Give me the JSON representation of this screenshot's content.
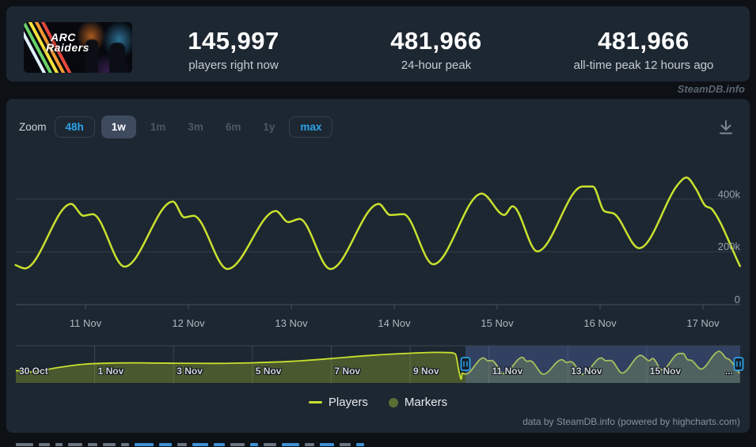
{
  "header": {
    "game": {
      "title_line1": "ARC",
      "title_line2": "Raiders"
    },
    "stats": [
      {
        "value": "145,997",
        "label": "players right now"
      },
      {
        "value": "481,966",
        "label": "24-hour peak"
      },
      {
        "value": "481,966",
        "label": "all-time peak 12 hours ago"
      }
    ]
  },
  "watermark": "SteamDB.info",
  "toolbar": {
    "zoom_label": "Zoom",
    "buttons": [
      {
        "label": "48h",
        "state": "enabled"
      },
      {
        "label": "1w",
        "state": "active"
      },
      {
        "label": "1m",
        "state": "disabled"
      },
      {
        "label": "3m",
        "state": "disabled"
      },
      {
        "label": "6m",
        "state": "disabled"
      },
      {
        "label": "1y",
        "state": "disabled"
      },
      {
        "label": "max",
        "state": "enabled"
      }
    ]
  },
  "chart_data": {
    "type": "line",
    "series_name": "Players",
    "x_axis": {
      "unit": "days relative to 11 Nov 00:00",
      "tick_labels": [
        "11 Nov",
        "12 Nov",
        "13 Nov",
        "14 Nov",
        "15 Nov",
        "16 Nov",
        "17 Nov"
      ]
    },
    "y_axis": {
      "tick_labels": [
        "400k",
        "200k",
        "0"
      ],
      "tick_values": [
        400000,
        200000,
        0
      ],
      "max": 570000
    },
    "points": [
      [
        -0.68,
        150000
      ],
      [
        -0.59,
        137000
      ],
      [
        -0.14,
        382000
      ],
      [
        -0.02,
        337000
      ],
      [
        0.07,
        343000
      ],
      [
        0.38,
        144000
      ],
      [
        0.85,
        391000
      ],
      [
        0.96,
        331000
      ],
      [
        1.05,
        337000
      ],
      [
        1.38,
        135000
      ],
      [
        1.85,
        355000
      ],
      [
        1.97,
        313000
      ],
      [
        2.08,
        325000
      ],
      [
        2.38,
        135000
      ],
      [
        2.85,
        382000
      ],
      [
        2.96,
        340000
      ],
      [
        3.09,
        343000
      ],
      [
        3.38,
        153000
      ],
      [
        3.85,
        421000
      ],
      [
        4.07,
        340000
      ],
      [
        4.15,
        373000
      ],
      [
        4.39,
        202000
      ],
      [
        4.83,
        448000
      ],
      [
        4.93,
        448000
      ],
      [
        5.04,
        355000
      ],
      [
        5.13,
        346000
      ],
      [
        5.38,
        214000
      ],
      [
        5.75,
        452000
      ],
      [
        5.84,
        481966
      ],
      [
        5.93,
        440000
      ],
      [
        6.02,
        376000
      ],
      [
        6.09,
        361000
      ],
      [
        6.36,
        145997
      ]
    ],
    "navigator": {
      "tick_labels": [
        "30 Oct",
        "1 Nov",
        "3 Nov",
        "5 Nov",
        "7 Nov",
        "9 Nov",
        "11 Nov",
        "13 Nov",
        "15 Nov",
        "..."
      ],
      "x_unit": "days since 30 Oct 00:00",
      "pre_points": [
        [
          0,
          190000
        ],
        [
          0.4,
          170000
        ],
        [
          1,
          230000
        ],
        [
          1.7,
          285000
        ],
        [
          2.2,
          300000
        ],
        [
          3,
          308000
        ],
        [
          4,
          302000
        ],
        [
          5,
          299000
        ],
        [
          6,
          308000
        ],
        [
          7,
          330000
        ],
        [
          8,
          372000
        ],
        [
          9,
          420000
        ],
        [
          10,
          452000
        ],
        [
          10.7,
          465000
        ],
        [
          11.0,
          462000
        ],
        [
          11.15,
          440000
        ],
        [
          11.25,
          150000
        ],
        [
          11.3,
          60000
        ]
      ]
    }
  },
  "legend": [
    {
      "name": "Players",
      "swatch": "line"
    },
    {
      "name": "Markers",
      "swatch": "circle"
    }
  ],
  "credits": "data by SteamDB.info (powered by highcharts.com)",
  "colors": {
    "line": "#c8e12e",
    "marker": "#5a6e34",
    "accent_blue": "#2da3e8",
    "panel": "#1d2732",
    "grid": "#343e49",
    "axis": "#47525e",
    "nav_fill": "rgba(190,215,40,0.28)",
    "nav_mask": "rgba(95,120,200,0.32)"
  }
}
